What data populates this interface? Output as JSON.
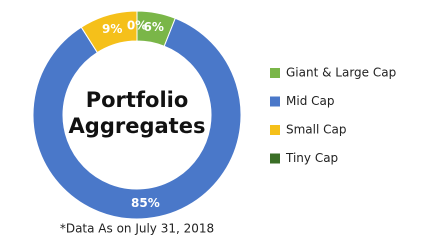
{
  "chart_data": {
    "type": "pie",
    "donut": true,
    "center_text": [
      "Portfolio",
      "Aggregates"
    ],
    "categories": [
      "Giant & Large Cap",
      "Mid Cap",
      "Small Cap",
      "Tiny Cap"
    ],
    "values": [
      6,
      85,
      9,
      0
    ],
    "value_labels": [
      "6%",
      "85%",
      "9%",
      "0%"
    ],
    "colors": [
      "#7ab648",
      "#4a78c9",
      "#f5c01a",
      "#3a6e26"
    ],
    "footnote": "*Data As on July 31, 2018"
  }
}
